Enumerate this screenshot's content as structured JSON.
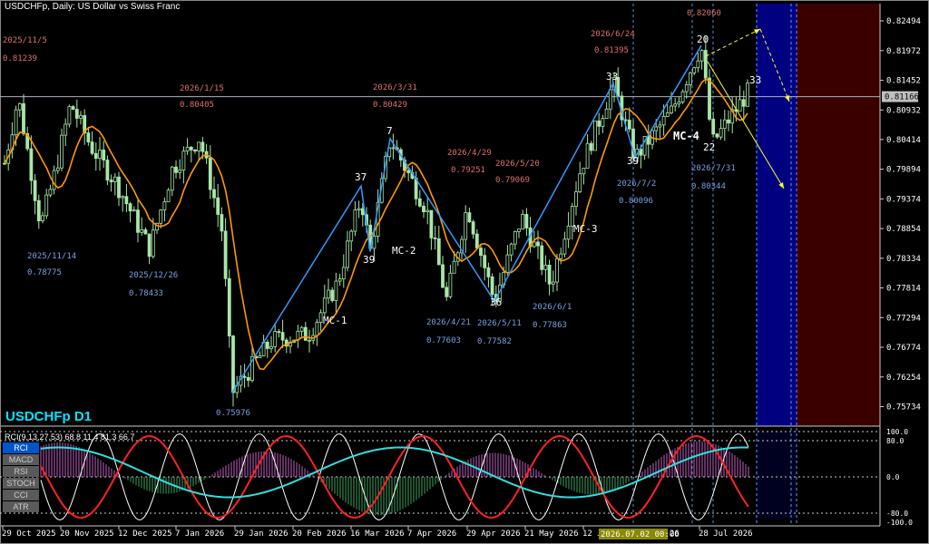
{
  "header": {
    "title": "USDCHFp, Daily:  US Dollar vs Swiss Franc"
  },
  "symbol_label": "USDCHFp D1",
  "indicator_header": "RCI(9,13,27,53) 68.8 11.4 81.3 66.7",
  "indicator_buttons": [
    {
      "label": "RCI",
      "active": true
    },
    {
      "label": "MACD",
      "active": false
    },
    {
      "label": "RSI",
      "active": false
    },
    {
      "label": "STOCH",
      "active": false
    },
    {
      "label": "CCI",
      "active": false
    },
    {
      "label": "ATR",
      "active": false
    }
  ],
  "price_axis": [
    "0.82494",
    "0.81972",
    "0.81452",
    "0.80932",
    "0.80414",
    "0.79894",
    "0.79374",
    "0.78854",
    "0.78334",
    "0.77814",
    "0.77294",
    "0.76774",
    "0.76254",
    "0.75734"
  ],
  "current_price": "0.81166",
  "indicator_axis": [
    "100.0",
    "80.0",
    "0.0",
    "-80.0",
    "-100.0"
  ],
  "time_axis": [
    "29 Oct 2025",
    "20 Nov 2025",
    "12 Dec 2025",
    "7 Jan 2026",
    "29 Jan 2026",
    "20 Feb 2026",
    "16 Mar 2026",
    "7 Apr 2026",
    "29 Apr 2026",
    "21 May 2026",
    "12 J",
    "28 Jul 2026"
  ],
  "time_highlight": "2026.07.02 00:00",
  "time_highlight_suffix": "26",
  "colors": {
    "candle": "#a8e6a8",
    "ma": "#ff9900",
    "wave": "#3399ff",
    "forecast": "#ffff33",
    "highlight_blue": "#000080",
    "highlight_red": "#3a0000",
    "rci1": "#ffffff",
    "rci2": "#ff2222",
    "rci3": "#33dddd"
  },
  "chart_data": {
    "type": "candlestick",
    "ylim": [
      0.755,
      0.8265
    ],
    "annotations": {
      "swing_labels": [
        {
          "date": "2025/11/5",
          "price": "0.81239",
          "side": "high"
        },
        {
          "date": "2025/11/14",
          "price": "0.78775",
          "side": "low"
        },
        {
          "date": "2025/12/26",
          "price": "0.78433",
          "side": "low"
        },
        {
          "date": "2026/1/15",
          "price": "0.80405",
          "side": "high"
        },
        {
          "date": "",
          "price": "0.75976",
          "side": "low"
        },
        {
          "date": "2026/3/31",
          "price": "0.80429",
          "side": "high"
        },
        {
          "date": "2026/4/21",
          "price": "0.77603",
          "side": "low"
        },
        {
          "date": "2026/4/29",
          "price": "0.79251",
          "side": "high"
        },
        {
          "date": "2026/5/11",
          "price": "0.77582",
          "side": "low"
        },
        {
          "date": "2026/5/20",
          "price": "0.79069",
          "side": "high"
        },
        {
          "date": "2026/6/1",
          "price": "0.77863",
          "side": "low"
        },
        {
          "date": "2026/6/24",
          "price": "0.81395",
          "side": "high"
        },
        {
          "date": "2026/7/2",
          "price": "0.80096",
          "side": "low"
        },
        {
          "date": "",
          "price": "0.82060",
          "side": "high"
        },
        {
          "date": "2026/7/31",
          "price": "0.80344",
          "side": "low"
        }
      ],
      "wave_numbers": [
        "37",
        "39",
        "7",
        "36",
        "33",
        "39",
        "20",
        "22",
        "33"
      ],
      "cycle_labels": [
        "MC-1",
        "MC-2",
        "MC-3",
        "MC-4"
      ]
    }
  }
}
